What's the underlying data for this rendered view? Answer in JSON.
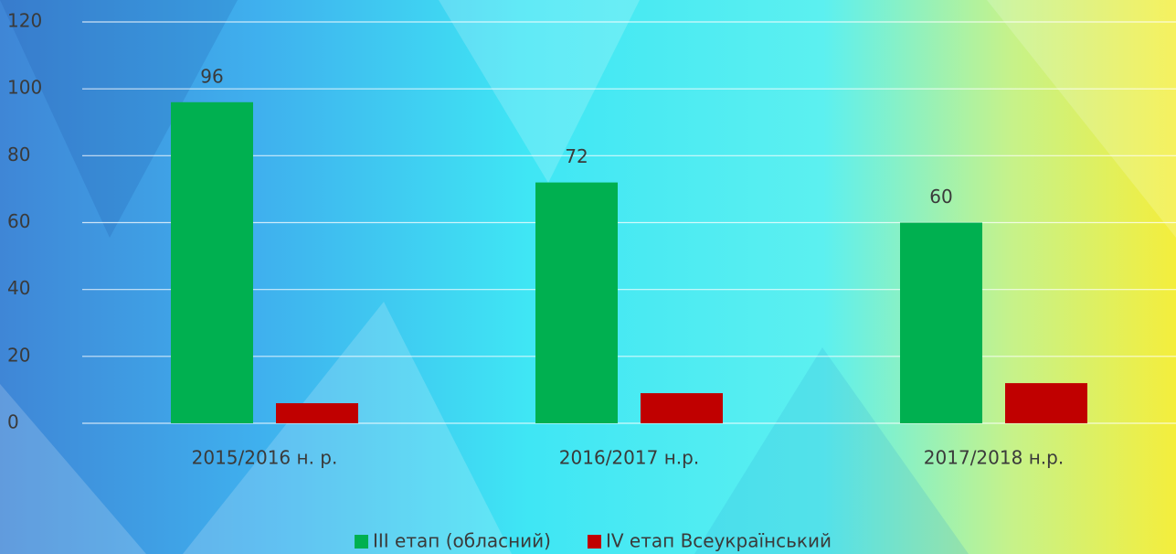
{
  "chart_data": {
    "type": "bar",
    "categories": [
      "2015/2016 н. р.",
      "2016/2017 н.р.",
      "2017/2018 н.р."
    ],
    "series": [
      {
        "name": "III етап (обласний)",
        "color": "#00b050",
        "values": [
          96,
          72,
          60
        ],
        "show_labels": true
      },
      {
        "name": "IV етап Всеукраїнський",
        "color": "#c00000",
        "values": [
          6,
          9,
          12
        ],
        "show_labels": false
      }
    ],
    "ylim": [
      0,
      120
    ],
    "yticks": [
      0,
      20,
      40,
      60,
      80,
      100,
      120
    ],
    "grid": true,
    "legend": "bottom"
  }
}
